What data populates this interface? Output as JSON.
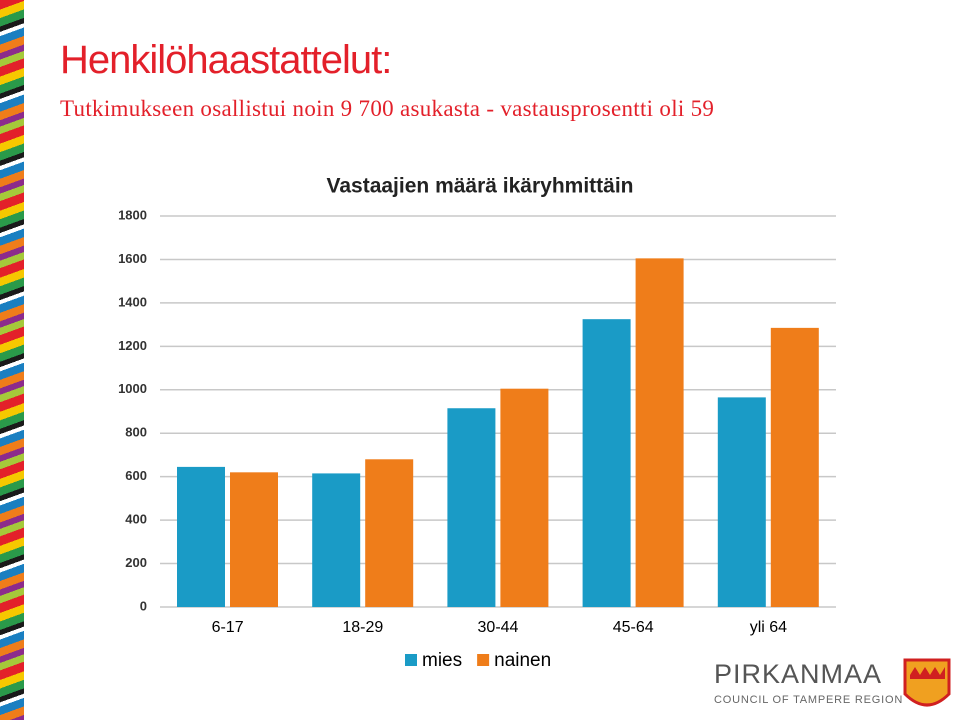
{
  "header": {
    "title": "Henkilöhaastattelut:",
    "subtitle": "Tutkimukseen osallistui noin 9 700 asukasta - vastausprosentti oli 59"
  },
  "logo": {
    "name": "PIRKANMAA",
    "tagline": "COUNCIL OF TAMPERE REGION"
  },
  "chart_data": {
    "type": "bar",
    "title": "Vastaajien määrä ikäryhmittäin",
    "categories": [
      "6-17",
      "18-29",
      "30-44",
      "45-64",
      "yli 64"
    ],
    "series": [
      {
        "name": "mies",
        "color": "#1a9bc6",
        "values": [
          645,
          615,
          915,
          1325,
          965
        ]
      },
      {
        "name": "nainen",
        "color": "#ef7d1a",
        "values": [
          620,
          680,
          1005,
          1605,
          1285
        ]
      }
    ],
    "ylim": [
      0,
      1800
    ],
    "yticks": [
      0,
      200,
      400,
      600,
      800,
      1000,
      1200,
      1400,
      1600,
      1800
    ],
    "grid": true,
    "legend": "bottom"
  }
}
